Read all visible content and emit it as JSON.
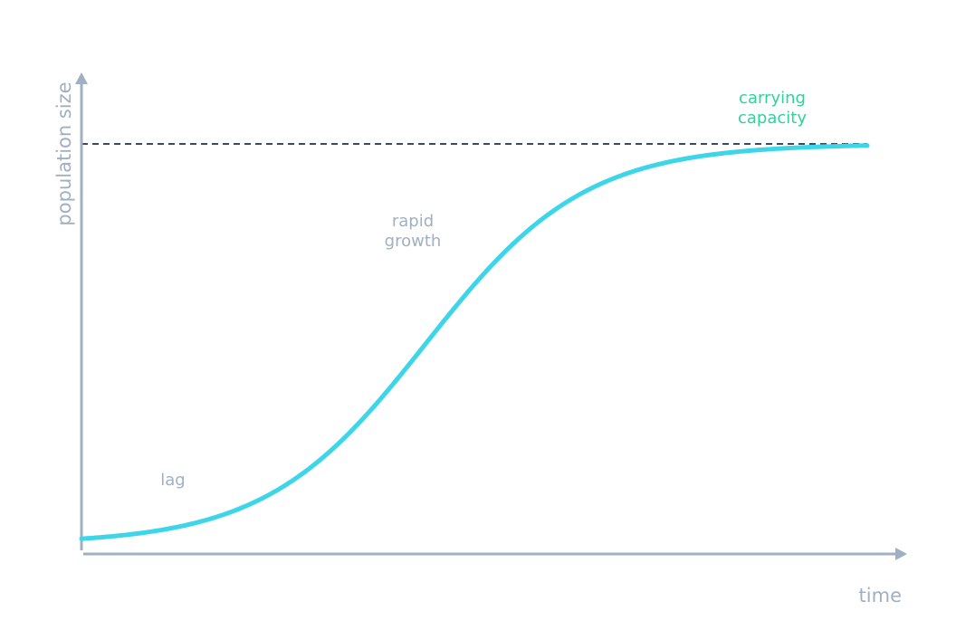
{
  "axes": {
    "y_label": "population size",
    "x_label": "time"
  },
  "annotations": [
    {
      "lines": [
        "lag"
      ]
    },
    {
      "lines": [
        "rapid",
        "growth"
      ]
    },
    {
      "lines": [
        "carrying",
        "capacity"
      ]
    }
  ]
}
